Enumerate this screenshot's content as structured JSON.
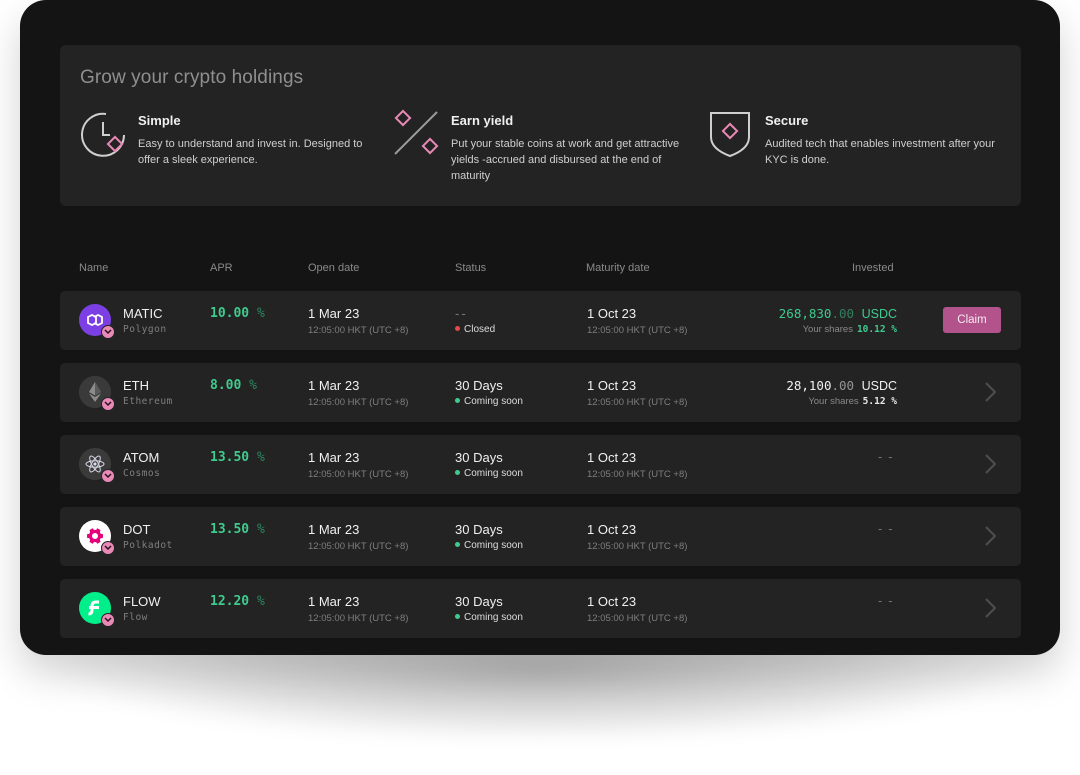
{
  "hero": {
    "title": "Grow your crypto holdings",
    "features": [
      {
        "icon": "clock-icon",
        "title": "Simple",
        "desc": "Easy to understand and invest in. Designed to offer a sleek experience."
      },
      {
        "icon": "percent-icon",
        "title": "Earn yield",
        "desc": "Put your stable coins at work and get attractive yields -accrued and disbursed at the end of maturity"
      },
      {
        "icon": "shield-icon",
        "title": "Secure",
        "desc": "Audited tech that enables investment after your KYC is done."
      }
    ]
  },
  "columns": {
    "name": "Name",
    "apr": "APR",
    "open": "Open date",
    "status": "Status",
    "maturity": "Maturity date",
    "invested": "Invested"
  },
  "colors": {
    "accent_pink": "#e889b6",
    "accent_green": "#3fcb8e",
    "claim_button": "#b3538c",
    "closed_dot": "#e5484d"
  },
  "rows": [
    {
      "icon": "polygon-icon",
      "name": "MATIC",
      "network": "Polygon",
      "apr": "10.00",
      "apr_unit": "%",
      "open_date": "1 Mar 23",
      "open_time": "12:05:00 HKT (UTC +8)",
      "status_main": "--",
      "status_sub": "Closed",
      "maturity_date": "1 Oct 23",
      "maturity_time": "12:05:00 HKT (UTC +8)",
      "invested_int": "268,830",
      "invested_dec": ".00",
      "invested_cur": "USDC",
      "shares_label": "Your shares",
      "shares_value": "10.12 %",
      "action": "Claim"
    },
    {
      "icon": "ethereum-icon",
      "name": "ETH",
      "network": "Ethereum",
      "apr": "8.00",
      "apr_unit": "%",
      "open_date": "1 Mar 23",
      "open_time": "12:05:00 HKT (UTC +8)",
      "status_main": "30 Days",
      "status_sub": "Coming soon",
      "maturity_date": "1 Oct 23",
      "maturity_time": "12:05:00 HKT (UTC +8)",
      "invested_int": "28,100",
      "invested_dec": ".00",
      "invested_cur": "USDC",
      "shares_label": "Your shares",
      "shares_value": "5.12 %"
    },
    {
      "icon": "cosmos-icon",
      "name": "ATOM",
      "network": "Cosmos",
      "apr": "13.50",
      "apr_unit": "%",
      "open_date": "1 Mar 23",
      "open_time": "12:05:00 HKT (UTC +8)",
      "status_main": "30 Days",
      "status_sub": "Coming soon",
      "maturity_date": "1 Oct 23",
      "maturity_time": "12:05:00 HKT (UTC +8)",
      "invested_empty": "--"
    },
    {
      "icon": "polkadot-icon",
      "name": "DOT",
      "network": "Polkadot",
      "apr": "13.50",
      "apr_unit": "%",
      "open_date": "1 Mar 23",
      "open_time": "12:05:00 HKT (UTC +8)",
      "status_main": "30 Days",
      "status_sub": "Coming soon",
      "maturity_date": "1 Oct 23",
      "maturity_time": "12:05:00 HKT (UTC +8)",
      "invested_empty": "--"
    },
    {
      "icon": "flow-icon",
      "name": "FLOW",
      "network": "Flow",
      "apr": "12.20",
      "apr_unit": "%",
      "open_date": "1 Mar 23",
      "open_time": "12:05:00 HKT (UTC +8)",
      "status_main": "30 Days",
      "status_sub": "Coming soon",
      "maturity_date": "1 Oct 23",
      "maturity_time": "12:05:00 HKT (UTC +8)",
      "invested_empty": "--"
    }
  ]
}
